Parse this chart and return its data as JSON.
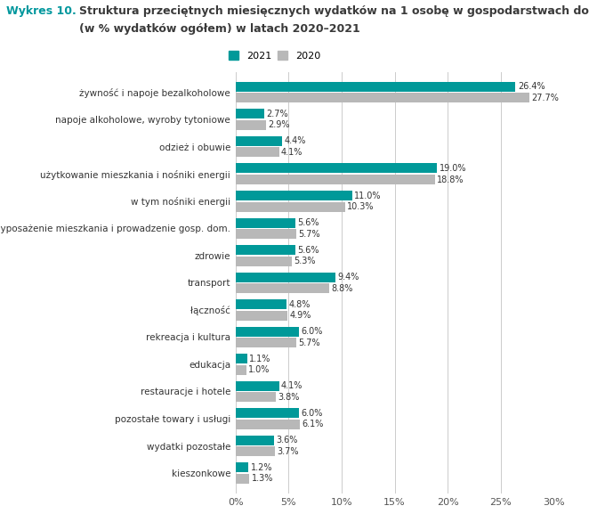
{
  "title_prefix": "Wykres 10.",
  "title_line1": "Struktura przeciętnych miesięcznych wydatków na 1 osobę w gospodarstwach domowych",
  "title_line2": "(w % wydatków ogółem) w latach 2020–2021",
  "categories": [
    "kieszonkowe",
    "wydatki pozostałe",
    "pozostałe towary i usługi",
    "restauracje i hotele",
    "edukacja",
    "rekreacja i kultura",
    "łączność",
    "transport",
    "zdrowie",
    "wyposażenie mieszkania i prowadzenie gosp. dom.",
    "w tym nośniki energii",
    "użytkowanie mieszkania i nośniki energii",
    "odzież i obuwie",
    "napoje alkoholowe, wyroby tytoniowe",
    "żywność i napoje bezalkoholowe"
  ],
  "values_2021": [
    1.2,
    3.6,
    6.0,
    4.1,
    1.1,
    6.0,
    4.8,
    9.4,
    5.6,
    5.6,
    11.0,
    19.0,
    4.4,
    2.7,
    26.4
  ],
  "values_2020": [
    1.3,
    3.7,
    6.1,
    3.8,
    1.0,
    5.7,
    4.9,
    8.8,
    5.3,
    5.7,
    10.3,
    18.8,
    4.1,
    2.9,
    27.7
  ],
  "color_2021": "#009999",
  "color_2020": "#B8B8B8",
  "xlim": [
    0,
    30
  ],
  "xticks": [
    0,
    5,
    10,
    15,
    20,
    25,
    30
  ],
  "xtick_labels": [
    "0%",
    "5%",
    "10%",
    "15%",
    "20%",
    "25%",
    "30%"
  ],
  "legend_2021": "2021",
  "legend_2020": "2020",
  "title_prefix_color": "#00979D",
  "title_main_color": "#3A3A3A",
  "bar_height": 0.36,
  "bar_gap": 0.05,
  "background_color": "#FFFFFF",
  "grid_color": "#CCCCCC",
  "label_fontsize": 7.5,
  "tick_fontsize": 8,
  "value_fontsize": 7.0
}
